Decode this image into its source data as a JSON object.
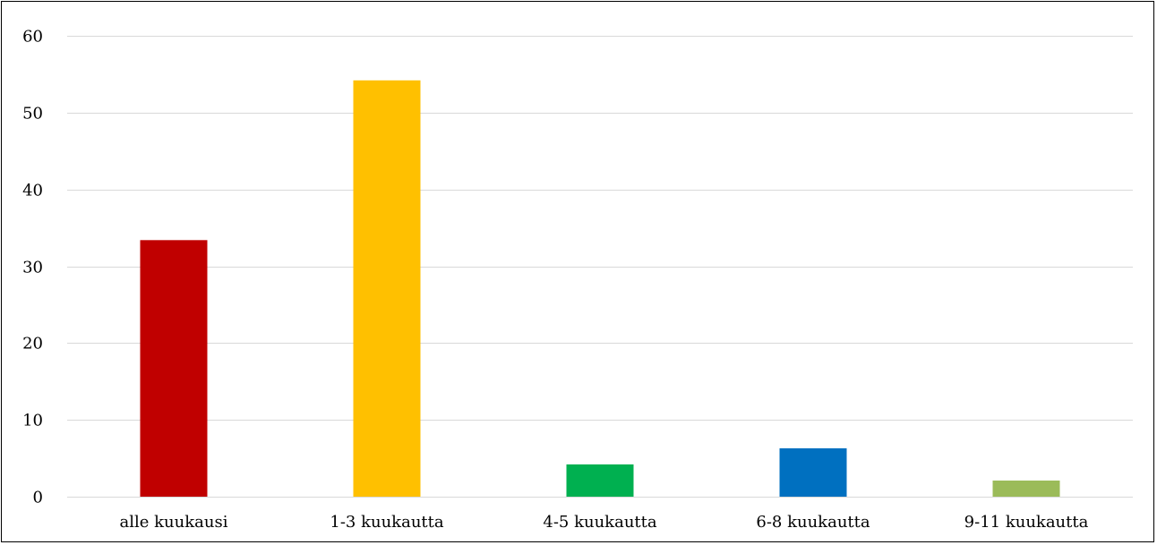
{
  "chart_data": {
    "type": "bar",
    "title": "",
    "xlabel": "",
    "ylabel": "",
    "categories": [
      "alle kuukausi",
      "1-3 kuukautta",
      "4-5 kuukautta",
      "6-8 kuukautta",
      "9-11 kuukautta"
    ],
    "values": [
      33.4,
      54.2,
      4.2,
      6.3,
      2.1
    ],
    "colors": [
      "#c00000",
      "#ffc000",
      "#00b050",
      "#0070c0",
      "#9bbb59"
    ],
    "ylim": [
      0,
      60
    ],
    "yticks": [
      0,
      10,
      20,
      30,
      40,
      50,
      60
    ],
    "grid": true,
    "legend": "none"
  }
}
